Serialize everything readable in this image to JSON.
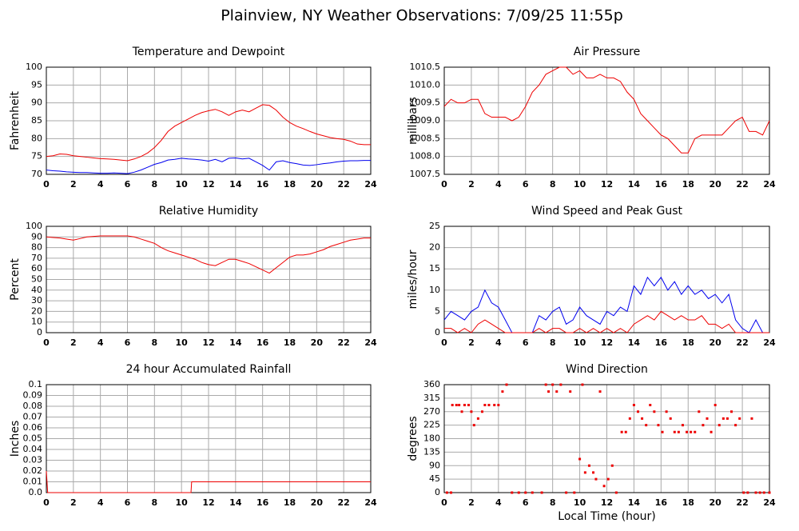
{
  "title": "Plainview, NY Weather Observations: 7/09/25 11:55p",
  "chart_data": [
    {
      "type": "line",
      "title": "Temperature and Dewpoint",
      "ylabel": "Fahrenheit",
      "xlim": [
        0,
        24
      ],
      "ylim": [
        70,
        100
      ],
      "xticks": [
        0,
        2,
        4,
        6,
        8,
        10,
        12,
        14,
        16,
        18,
        20,
        22,
        24
      ],
      "yticks": [
        70,
        75,
        80,
        85,
        90,
        95,
        100
      ],
      "grid": true,
      "x": [
        0,
        0.5,
        1,
        1.5,
        2,
        2.5,
        3,
        3.5,
        4,
        4.5,
        5,
        5.5,
        6,
        6.5,
        7,
        7.5,
        8,
        8.5,
        9,
        9.5,
        10,
        10.5,
        11,
        11.5,
        12,
        12.5,
        13,
        13.5,
        14,
        14.5,
        15,
        15.5,
        16,
        16.5,
        17,
        17.5,
        18,
        18.5,
        19,
        19.5,
        20,
        20.5,
        21,
        21.5,
        22,
        22.5,
        23,
        23.5,
        24
      ],
      "series": [
        {
          "color": "#ee0000",
          "values": [
            75,
            75.2,
            75.7,
            75.6,
            75.2,
            75,
            74.8,
            74.6,
            74.4,
            74.3,
            74.2,
            74,
            73.8,
            74.3,
            75,
            76,
            77.5,
            79.5,
            82,
            83.5,
            84.5,
            85.5,
            86.5,
            87.3,
            87.8,
            88.2,
            87.5,
            86.5,
            87.5,
            88,
            87.5,
            88.5,
            89.5,
            89.3,
            88,
            86,
            84.5,
            83.5,
            82.8,
            82,
            81.3,
            80.8,
            80.3,
            80,
            79.8,
            79.3,
            78.5,
            78.3,
            78.3
          ]
        },
        {
          "color": "#0000ee",
          "values": [
            71.2,
            71,
            70.9,
            70.7,
            70.6,
            70.5,
            70.5,
            70.4,
            70.3,
            70.3,
            70.4,
            70.3,
            70.2,
            70.6,
            71.2,
            72,
            72.8,
            73.3,
            74,
            74.2,
            74.5,
            74.3,
            74.2,
            74,
            73.7,
            74.2,
            73.5,
            74.5,
            74.6,
            74.3,
            74.5,
            73.5,
            72.5,
            71.2,
            73.5,
            73.8,
            73.3,
            73,
            72.6,
            72.5,
            72.7,
            73,
            73.2,
            73.5,
            73.7,
            73.8,
            73.8,
            73.9,
            73.9
          ]
        }
      ]
    },
    {
      "type": "line",
      "title": "Air Pressure",
      "ylabel": "millibars",
      "xlim": [
        0,
        24
      ],
      "ylim": [
        1007.5,
        1010.5
      ],
      "xticks": [
        0,
        2,
        4,
        6,
        8,
        10,
        12,
        14,
        16,
        18,
        20,
        22,
        24
      ],
      "yticks": [
        1007.5,
        {
          "value": 1008,
          "label": "1008.0"
        },
        1008.5,
        {
          "value": 1009,
          "label": "1009.0"
        },
        1009.5,
        {
          "value": 1010,
          "label": "1010.0"
        },
        1010.5
      ],
      "grid": true,
      "x": [
        0,
        0.5,
        1,
        1.5,
        2,
        2.5,
        3,
        3.5,
        4,
        4.5,
        5,
        5.5,
        6,
        6.5,
        7,
        7.5,
        8,
        8.5,
        9,
        9.5,
        10,
        10.5,
        11,
        11.5,
        12,
        12.5,
        13,
        13.5,
        14,
        14.5,
        15,
        15.5,
        16,
        16.5,
        17,
        17.5,
        18,
        18.5,
        19,
        19.5,
        20,
        20.5,
        21,
        21.5,
        22,
        22.5,
        23,
        23.5,
        24
      ],
      "series": [
        {
          "color": "#ee0000",
          "values": [
            1009.4,
            1009.6,
            1009.5,
            1009.5,
            1009.6,
            1009.6,
            1009.2,
            1009.1,
            1009.1,
            1009.1,
            1009,
            1009.1,
            1009.4,
            1009.8,
            1010,
            1010.3,
            1010.4,
            1010.5,
            1010.5,
            1010.3,
            1010.4,
            1010.2,
            1010.2,
            1010.3,
            1010.2,
            1010.2,
            1010.1,
            1009.8,
            1009.6,
            1009.2,
            1009,
            1008.8,
            1008.6,
            1008.5,
            1008.3,
            1008.1,
            1008.1,
            1008.5,
            1008.6,
            1008.6,
            1008.6,
            1008.6,
            1008.8,
            1009,
            1009.1,
            1008.7,
            1008.7,
            1008.6,
            1009
          ]
        }
      ]
    },
    {
      "type": "line",
      "title": "Relative Humidity",
      "ylabel": "Percent",
      "xlim": [
        0,
        24
      ],
      "ylim": [
        0,
        100
      ],
      "xticks": [
        0,
        2,
        4,
        6,
        8,
        10,
        12,
        14,
        16,
        18,
        20,
        22,
        24
      ],
      "yticks": [
        0,
        10,
        20,
        30,
        40,
        50,
        60,
        70,
        80,
        90,
        100
      ],
      "grid": true,
      "x": [
        0,
        0.5,
        1,
        1.5,
        2,
        2.5,
        3,
        3.5,
        4,
        4.5,
        5,
        5.5,
        6,
        6.5,
        7,
        7.5,
        8,
        8.5,
        9,
        9.5,
        10,
        10.5,
        11,
        11.5,
        12,
        12.5,
        13,
        13.5,
        14,
        14.5,
        15,
        15.5,
        16,
        16.5,
        17,
        17.5,
        18,
        18.5,
        19,
        19.5,
        20,
        20.5,
        21,
        21.5,
        22,
        22.5,
        23,
        23.5,
        24
      ],
      "series": [
        {
          "color": "#ee0000",
          "values": [
            90,
            89.5,
            89,
            88,
            87,
            88.5,
            90,
            90.5,
            91,
            91,
            91,
            91,
            91,
            90,
            88,
            86,
            84,
            80,
            77,
            75,
            73,
            71,
            69,
            66,
            64,
            63,
            66,
            69,
            69,
            67,
            65,
            62,
            59,
            56,
            61,
            66,
            71,
            73,
            73,
            74,
            76,
            78,
            81,
            83,
            85,
            87,
            88,
            89,
            89
          ]
        }
      ]
    },
    {
      "type": "line",
      "title": "Wind Speed and Peak Gust",
      "ylabel": "miles/hour",
      "xlim": [
        0,
        24
      ],
      "ylim": [
        0,
        25
      ],
      "xticks": [
        0,
        2,
        4,
        6,
        8,
        10,
        12,
        14,
        16,
        18,
        20,
        22,
        24
      ],
      "yticks": [
        0,
        5,
        10,
        15,
        20,
        25
      ],
      "grid": true,
      "x": [
        0,
        0.5,
        1,
        1.5,
        2,
        2.5,
        3,
        3.5,
        4,
        4.5,
        5,
        5.5,
        6,
        6.5,
        7,
        7.5,
        8,
        8.5,
        9,
        9.5,
        10,
        10.5,
        11,
        11.5,
        12,
        12.5,
        13,
        13.5,
        14,
        14.5,
        15,
        15.5,
        16,
        16.5,
        17,
        17.5,
        18,
        18.5,
        19,
        19.5,
        20,
        20.5,
        21,
        21.5,
        22,
        22.5,
        23,
        23.5,
        24
      ],
      "series": [
        {
          "color": "#0000ee",
          "values": [
            3,
            5,
            4,
            3,
            5,
            6,
            10,
            7,
            6,
            3,
            0,
            0,
            0,
            0,
            4,
            3,
            5,
            6,
            2,
            3,
            6,
            4,
            3,
            2,
            5,
            4,
            6,
            5,
            11,
            9,
            13,
            11,
            13,
            10,
            12,
            9,
            11,
            9,
            10,
            8,
            9,
            7,
            9,
            3,
            1,
            0,
            3,
            0,
            0
          ]
        },
        {
          "color": "#ee0000",
          "values": [
            1,
            1,
            0,
            1,
            0,
            2,
            3,
            2,
            1,
            0,
            0,
            0,
            0,
            0,
            1,
            0,
            1,
            1,
            0,
            0,
            1,
            0,
            1,
            0,
            1,
            0,
            1,
            0,
            2,
            3,
            4,
            3,
            5,
            4,
            3,
            4,
            3,
            3,
            4,
            2,
            2,
            1,
            2,
            0,
            0,
            0,
            0,
            0,
            0
          ]
        }
      ]
    },
    {
      "type": "line",
      "title": "24 hour Accumulated Rainfall",
      "ylabel": "Inches",
      "xlim": [
        0,
        24
      ],
      "ylim": [
        0,
        0.1
      ],
      "xticks": [
        0,
        2,
        4,
        6,
        8,
        10,
        12,
        14,
        16,
        18,
        20,
        22,
        24
      ],
      "yticks": [
        {
          "value": 0,
          "label": "0.0"
        },
        0.01,
        0.02,
        0.03,
        0.04,
        0.05,
        0.06,
        0.07,
        0.08,
        0.09,
        0.1
      ],
      "grid": true,
      "x": [
        0,
        0.1,
        10.7,
        10.75,
        24
      ],
      "series": [
        {
          "color": "#ee0000",
          "values": [
            0.02,
            0,
            0,
            0.01,
            0.01
          ]
        }
      ]
    },
    {
      "type": "scatter",
      "title": "Wind Direction",
      "ylabel": "degrees",
      "xlabel": "Local Time (hour)",
      "xlim": [
        0,
        24
      ],
      "ylim": [
        0,
        360
      ],
      "xticks": [
        0,
        2,
        4,
        6,
        8,
        10,
        12,
        14,
        16,
        18,
        20,
        22,
        24
      ],
      "yticks": [
        0,
        45,
        90,
        135,
        180,
        225,
        270,
        315,
        360
      ],
      "grid": true,
      "x": [
        0.2,
        0.5,
        0.6,
        0.9,
        1.1,
        1.3,
        1.5,
        1.8,
        2,
        2.2,
        2.5,
        2.8,
        3,
        3.3,
        3.7,
        4,
        4.3,
        4.6,
        5,
        5.5,
        6,
        6.5,
        7.2,
        7.5,
        7.7,
        8,
        8.3,
        8.6,
        9,
        9.3,
        9.6,
        10,
        10.2,
        10.4,
        10.7,
        11,
        11.2,
        11.5,
        11.8,
        12.1,
        12.4,
        12.7,
        13.1,
        13.4,
        13.7,
        14,
        14.3,
        14.6,
        14.9,
        15.2,
        15.5,
        15.8,
        16.1,
        16.4,
        16.7,
        17,
        17.3,
        17.6,
        17.9,
        18.2,
        18.5,
        18.8,
        19.1,
        19.4,
        19.7,
        20,
        20.3,
        20.6,
        20.9,
        21.2,
        21.5,
        21.8,
        22.1,
        22.4,
        22.7,
        23,
        23.3,
        23.6,
        24
      ],
      "series": [
        {
          "color": "#ee0000",
          "values": [
            0,
            0,
            292,
            292,
            292,
            270,
            292,
            292,
            270,
            225,
            247,
            270,
            292,
            292,
            292,
            292,
            337,
            360,
            0,
            0,
            0,
            0,
            0,
            360,
            337,
            360,
            337,
            360,
            0,
            337,
            0,
            112,
            360,
            67,
            90,
            67,
            45,
            337,
            22,
            45,
            90,
            0,
            202,
            202,
            247,
            292,
            270,
            247,
            225,
            292,
            270,
            225,
            202,
            270,
            247,
            202,
            202,
            225,
            202,
            202,
            202,
            270,
            225,
            247,
            202,
            292,
            225,
            247,
            247,
            270,
            225,
            247,
            0,
            0,
            247,
            0,
            0,
            0,
            0
          ]
        }
      ]
    }
  ]
}
